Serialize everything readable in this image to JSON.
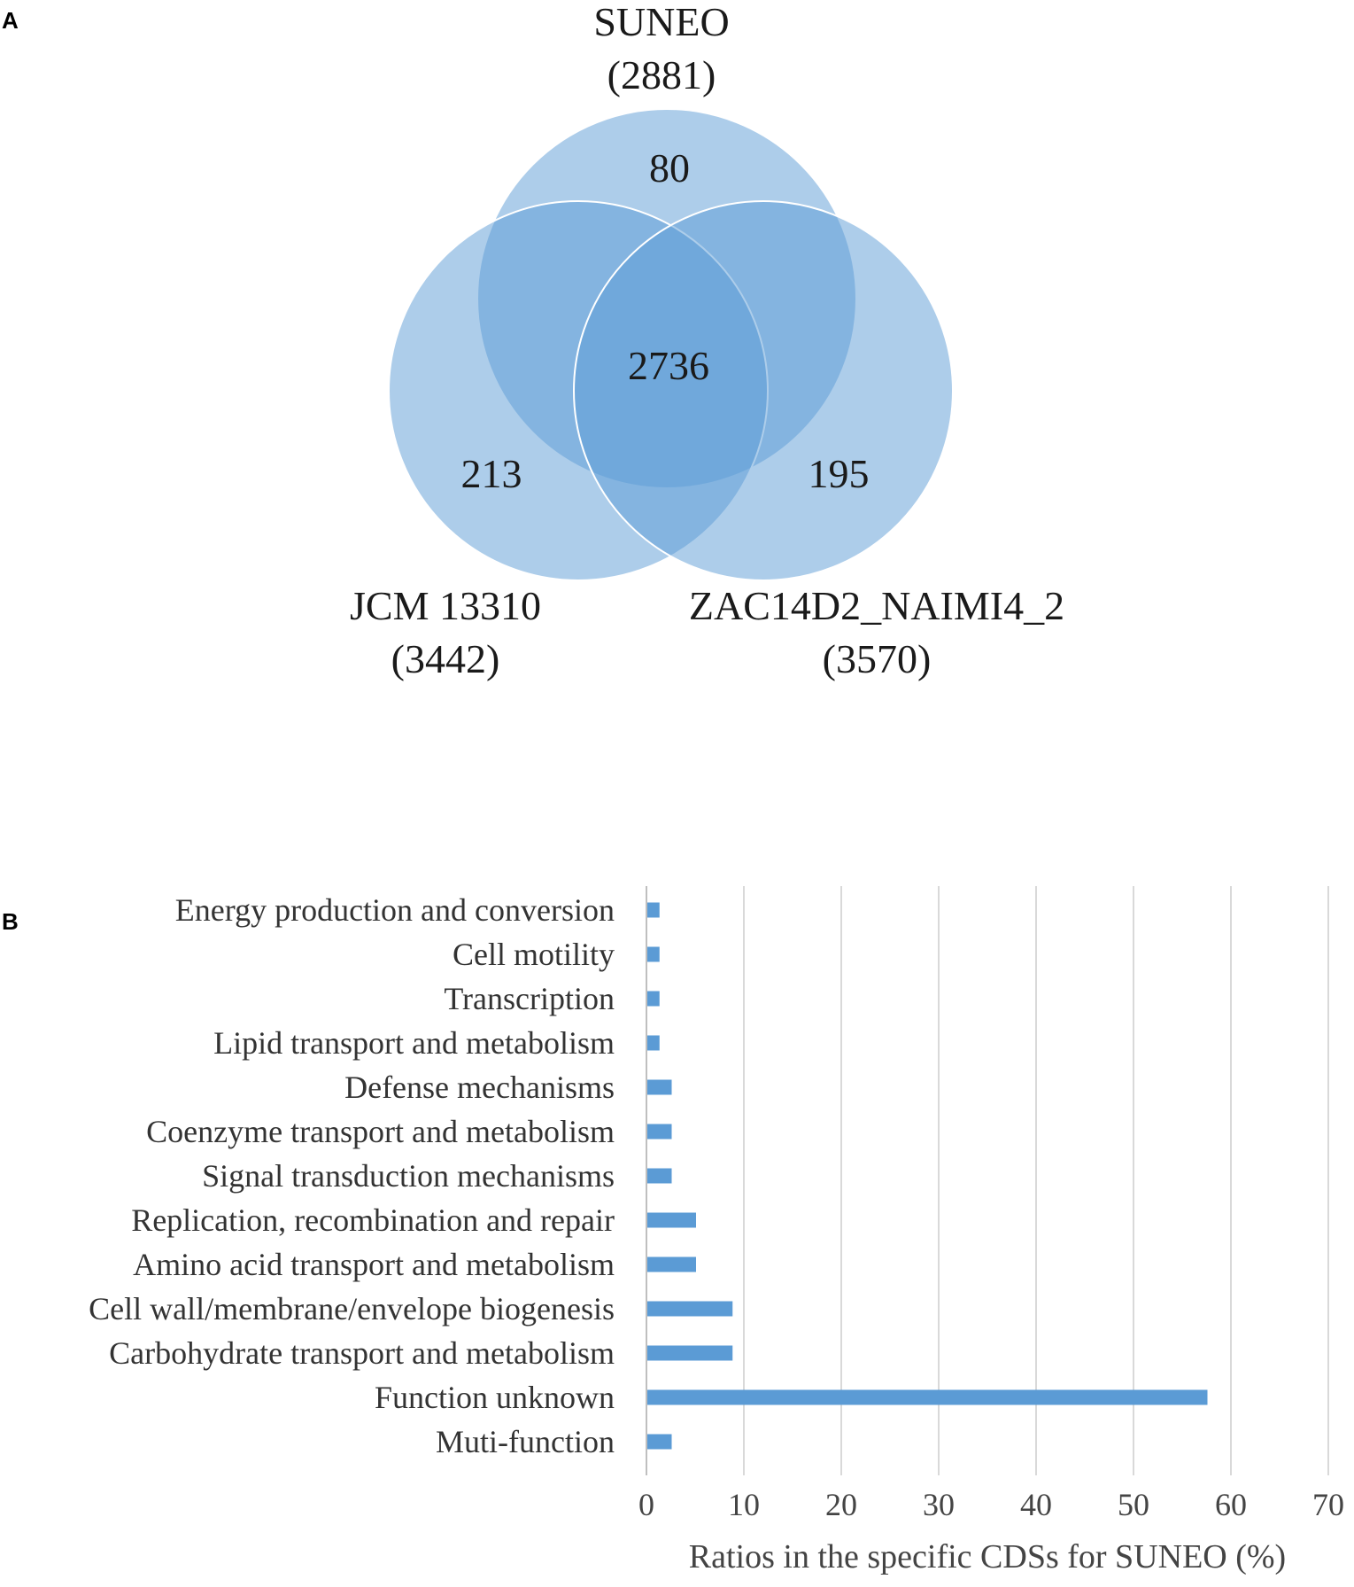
{
  "panels": {
    "a": "A",
    "b": "B"
  },
  "venn": {
    "sets": [
      {
        "name": "SUNEO",
        "total": "(2881)"
      },
      {
        "name": "JCM 13310",
        "total": "(3442)"
      },
      {
        "name": "ZAC14D2_NAIMI4_2",
        "total": "(3570)"
      }
    ],
    "regions": {
      "suneo_only": "80",
      "all_three": "2736",
      "jcm_only": "213",
      "zac_only": "195"
    },
    "colors": {
      "circle": "#5b9bd5"
    }
  },
  "chart_data": {
    "type": "bar",
    "orientation": "horizontal",
    "categories": [
      "Energy production and conversion",
      "Cell motility",
      "Transcription",
      "Lipid transport and metabolism",
      "Defense mechanisms",
      "Coenzyme transport and metabolism",
      "Signal transduction mechanisms",
      "Replication, recombination and repair",
      "Amino acid transport and metabolism",
      "Cell wall/membrane/envelope biogenesis",
      "Carbohydrate transport and metabolism",
      "Function unknown",
      "Muti-function"
    ],
    "values": [
      1.25,
      1.25,
      1.25,
      1.25,
      2.5,
      2.5,
      2.5,
      5.0,
      5.0,
      8.75,
      8.75,
      57.5,
      2.5
    ],
    "xlabel": "Ratios in the specific CDSs for SUNEO (%)",
    "ylabel": "",
    "xlim": [
      0,
      70
    ],
    "xticks": [
      "0",
      "10",
      "20",
      "30",
      "40",
      "50",
      "60",
      "70"
    ],
    "grid": "vertical",
    "bar_color": "#5b9bd5"
  }
}
